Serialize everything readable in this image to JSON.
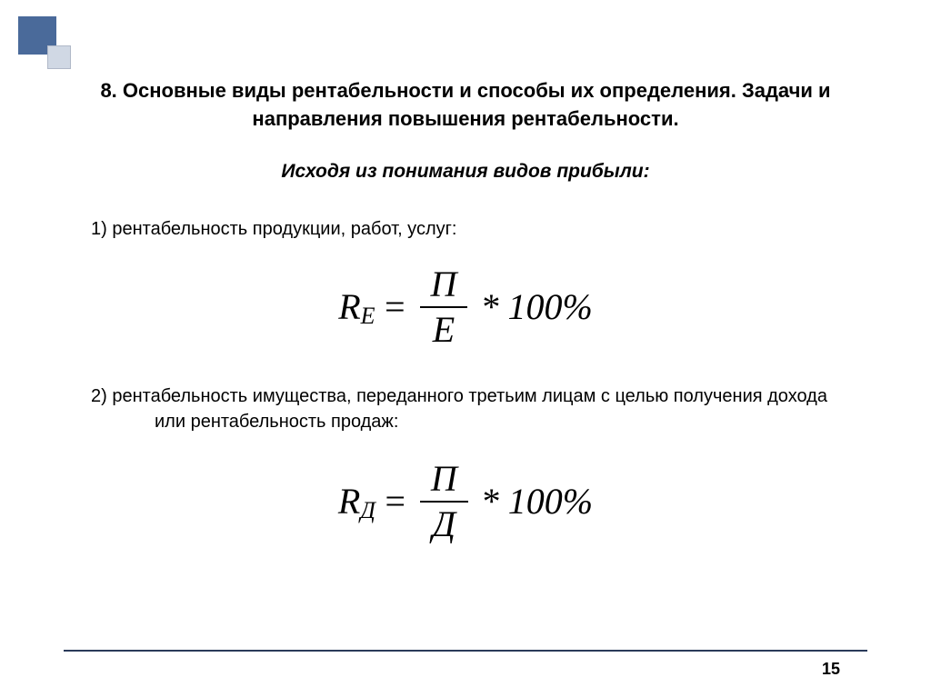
{
  "decoration": {
    "square1_color": "#4a6a9a",
    "square2_color": "#d0d8e4"
  },
  "title": "8. Основные виды рентабельности и способы их определения. Задачи и направления повышения рентабельности.",
  "subtitle": "Исходя из понимания видов прибыли:",
  "item1": "1)   рентабельность продукции, работ, услуг:",
  "formula1": {
    "lhs_var": "R",
    "lhs_sub": "E",
    "eq": "=",
    "num": "П",
    "den": "Е",
    "tail": "* 100%"
  },
  "item2": "2) рентабельность имущества, переданного третьим лицам с целью получения дохода или рентабельность продаж:",
  "formula2": {
    "lhs_var": "R",
    "lhs_sub": "Д",
    "eq": "=",
    "num": "П",
    "den": "Д",
    "tail": "* 100%"
  },
  "page_number": "15"
}
